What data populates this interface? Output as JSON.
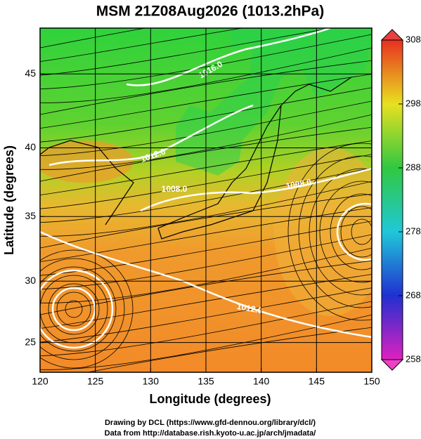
{
  "title": "MSM 21Z08Aug2026 (1013.2hPa)",
  "map": {
    "x_label": "Longitude (degrees)",
    "y_label": "Latitude  (degrees)",
    "lon_range": [
      120,
      150
    ],
    "lat_range": [
      22.5,
      47.9
    ],
    "projection": "mercator",
    "lon_ticks": [
      120,
      125,
      130,
      135,
      140,
      145,
      150
    ],
    "lat_ticks": [
      25,
      30,
      35,
      40,
      45
    ],
    "grid": true,
    "contour_labels": [
      "1016.0",
      "1012.0",
      "1008.0",
      "1008.0",
      "1012.0"
    ]
  },
  "colorbar": {
    "range": [
      258,
      308
    ],
    "ticks": [
      258,
      268,
      278,
      288,
      298,
      308
    ]
  },
  "footer": [
    "Drawing by DCL (https://www.gfd-dennou.org/library/dcl/)",
    "Data from http://database.rish.kyoto-u.ac.jp/arch/jmadata/"
  ]
}
